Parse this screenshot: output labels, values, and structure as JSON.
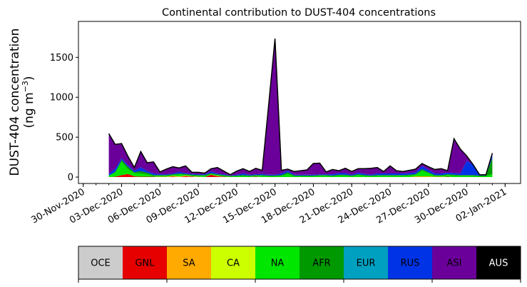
{
  "chart_data": {
    "type": "area",
    "title": "Continental contribution to DUST-404 concentrations",
    "ylabel_line1": "DUST-404 concentration",
    "ylabel_line2_prefix": "(ng m",
    "ylabel_line2_sup": "−3",
    "ylabel_line2_suffix": ")",
    "xlabel": "",
    "x_start_date": "2020-12-02",
    "x_step_hours": 12,
    "xlim": [
      "2020-11-29T15:00",
      "2021-01-03T05:00"
    ],
    "ylim": [
      -80,
      1950
    ],
    "yticks": [
      0,
      500,
      1000,
      1500
    ],
    "xtick_labels": [
      "30-Nov-2020",
      "03-Dec-2020",
      "06-Dec-2020",
      "09-Dec-2020",
      "12-Dec-2020",
      "15-Dec-2020",
      "18-Dec-2020",
      "21-Dec-2020",
      "24-Dec-2020",
      "27-Dec-2020",
      "30-Dec-2020",
      "02-Jan-2021"
    ],
    "stacked": true,
    "series": [
      {
        "name": "OCE",
        "color": "#cccccc",
        "values": [
          0,
          0,
          0,
          0,
          0,
          0,
          0,
          0,
          0,
          0,
          0,
          0,
          0,
          0,
          0,
          0,
          0,
          0,
          0,
          0,
          0,
          0,
          0,
          0,
          0,
          0,
          0,
          0,
          0,
          0,
          0,
          0,
          0,
          0,
          0,
          0,
          0,
          0,
          0,
          0,
          0,
          0,
          0,
          0,
          0,
          0,
          0,
          0,
          0,
          0,
          0,
          0,
          0,
          0,
          0,
          0,
          0,
          0,
          0,
          0,
          0
        ]
      },
      {
        "name": "GNL",
        "color": "#e60000",
        "values": [
          0,
          5,
          25,
          40,
          10,
          5,
          5,
          5,
          0,
          0,
          5,
          0,
          10,
          5,
          0,
          0,
          30,
          10,
          5,
          0,
          0,
          0,
          0,
          5,
          0,
          0,
          0,
          0,
          0,
          0,
          0,
          0,
          0,
          0,
          0,
          0,
          0,
          0,
          0,
          0,
          0,
          0,
          0,
          0,
          0,
          0,
          0,
          0,
          0,
          0,
          0,
          0,
          0,
          5,
          0,
          0,
          0,
          0,
          0,
          0,
          0
        ]
      },
      {
        "name": "SA",
        "color": "#ffaa00",
        "values": [
          0,
          0,
          0,
          0,
          0,
          0,
          0,
          0,
          5,
          5,
          10,
          5,
          10,
          5,
          5,
          0,
          0,
          5,
          0,
          0,
          0,
          0,
          0,
          0,
          0,
          0,
          0,
          0,
          0,
          0,
          0,
          0,
          0,
          0,
          0,
          0,
          0,
          0,
          0,
          0,
          0,
          0,
          0,
          0,
          0,
          0,
          0,
          0,
          10,
          10,
          10,
          5,
          5,
          0,
          0,
          0,
          0,
          0,
          0,
          0,
          0
        ]
      },
      {
        "name": "CA",
        "color": "#ccff00",
        "values": [
          0,
          0,
          0,
          0,
          0,
          0,
          0,
          0,
          0,
          0,
          0,
          5,
          0,
          0,
          0,
          0,
          0,
          0,
          0,
          0,
          0,
          0,
          0,
          0,
          0,
          0,
          0,
          0,
          0,
          0,
          0,
          0,
          0,
          0,
          0,
          0,
          0,
          0,
          0,
          0,
          0,
          0,
          0,
          0,
          0,
          0,
          0,
          0,
          0,
          0,
          0,
          0,
          0,
          0,
          0,
          0,
          0,
          0,
          0,
          0,
          0
        ]
      },
      {
        "name": "NA",
        "color": "#00e600",
        "values": [
          20,
          50,
          170,
          60,
          40,
          40,
          30,
          10,
          10,
          10,
          10,
          25,
          10,
          10,
          10,
          15,
          10,
          10,
          10,
          5,
          10,
          15,
          10,
          10,
          15,
          10,
          10,
          15,
          40,
          10,
          10,
          10,
          10,
          15,
          15,
          10,
          20,
          20,
          10,
          25,
          15,
          10,
          15,
          15,
          15,
          15,
          15,
          20,
          20,
          70,
          40,
          10,
          10,
          20,
          20,
          15,
          15,
          15,
          10,
          10,
          40
        ]
      },
      {
        "name": "AFR",
        "color": "#009900",
        "values": [
          0,
          10,
          20,
          30,
          10,
          30,
          20,
          10,
          10,
          10,
          10,
          10,
          10,
          10,
          10,
          10,
          10,
          10,
          10,
          10,
          10,
          10,
          10,
          10,
          10,
          10,
          10,
          10,
          20,
          10,
          10,
          10,
          10,
          10,
          10,
          10,
          10,
          10,
          10,
          10,
          10,
          10,
          10,
          10,
          10,
          10,
          10,
          10,
          10,
          20,
          10,
          10,
          10,
          10,
          10,
          10,
          10,
          10,
          10,
          10,
          200
        ]
      },
      {
        "name": "EUR",
        "color": "#00a0c0",
        "values": [
          0,
          0,
          0,
          0,
          0,
          0,
          0,
          0,
          0,
          0,
          0,
          0,
          0,
          0,
          0,
          0,
          0,
          0,
          0,
          0,
          0,
          0,
          0,
          0,
          0,
          0,
          0,
          0,
          0,
          0,
          0,
          0,
          0,
          0,
          0,
          0,
          0,
          0,
          0,
          0,
          0,
          0,
          0,
          0,
          0,
          0,
          0,
          0,
          0,
          0,
          0,
          0,
          0,
          0,
          0,
          0,
          0,
          0,
          0,
          0,
          0
        ]
      },
      {
        "name": "RUS",
        "color": "#0033e6",
        "values": [
          20,
          40,
          20,
          20,
          20,
          50,
          20,
          20,
          10,
          10,
          10,
          20,
          10,
          10,
          10,
          10,
          20,
          10,
          10,
          5,
          10,
          20,
          10,
          10,
          15,
          10,
          10,
          20,
          20,
          10,
          10,
          10,
          10,
          10,
          10,
          15,
          20,
          20,
          10,
          20,
          15,
          10,
          20,
          20,
          20,
          20,
          20,
          20,
          20,
          40,
          30,
          20,
          20,
          20,
          20,
          20,
          180,
          130,
          10,
          10,
          60
        ]
      },
      {
        "name": "ASI",
        "color": "#6a0099",
        "values": [
          505,
          305,
          185,
          110,
          40,
          195,
          105,
          145,
          30,
          65,
          85,
          50,
          90,
          20,
          25,
          15,
          35,
          75,
          40,
          10,
          45,
          60,
          40,
          75,
          45,
          870,
          1705,
          40,
          20,
          40,
          50,
          60,
          140,
          140,
          30,
          60,
          30,
          60,
          40,
          50,
          65,
          80,
          75,
          25,
          95,
          35,
          25,
          35,
          40,
          30,
          40,
          50,
          60,
          25,
          430,
          305,
          60,
          0,
          0,
          0,
          0
        ]
      },
      {
        "name": "AUS",
        "color": "#000000",
        "values": [
          0,
          0,
          0,
          0,
          0,
          0,
          0,
          0,
          0,
          0,
          0,
          0,
          0,
          0,
          0,
          0,
          0,
          0,
          0,
          0,
          0,
          0,
          0,
          0,
          0,
          0,
          0,
          0,
          0,
          0,
          0,
          0,
          0,
          0,
          0,
          0,
          0,
          0,
          0,
          0,
          0,
          0,
          0,
          0,
          0,
          0,
          0,
          0,
          0,
          0,
          0,
          0,
          0,
          0,
          0,
          0,
          0,
          0,
          0,
          0,
          0
        ]
      }
    ],
    "legend": {
      "placement": "bottom",
      "entries": [
        {
          "label": "OCE",
          "color": "#cccccc",
          "text_color": "#000000"
        },
        {
          "label": "GNL",
          "color": "#e60000",
          "text_color": "#000000"
        },
        {
          "label": "SA",
          "color": "#ffaa00",
          "text_color": "#000000"
        },
        {
          "label": "CA",
          "color": "#ccff00",
          "text_color": "#000000"
        },
        {
          "label": "NA",
          "color": "#00e600",
          "text_color": "#000000"
        },
        {
          "label": "AFR",
          "color": "#009900",
          "text_color": "#000000"
        },
        {
          "label": "EUR",
          "color": "#00a0c0",
          "text_color": "#000000"
        },
        {
          "label": "RUS",
          "color": "#0033e6",
          "text_color": "#000000"
        },
        {
          "label": "ASI",
          "color": "#6a0099",
          "text_color": "#000000"
        },
        {
          "label": "AUS",
          "color": "#000000",
          "text_color": "#ffffff"
        }
      ]
    },
    "grid": false,
    "total_line_color": "#000000"
  }
}
